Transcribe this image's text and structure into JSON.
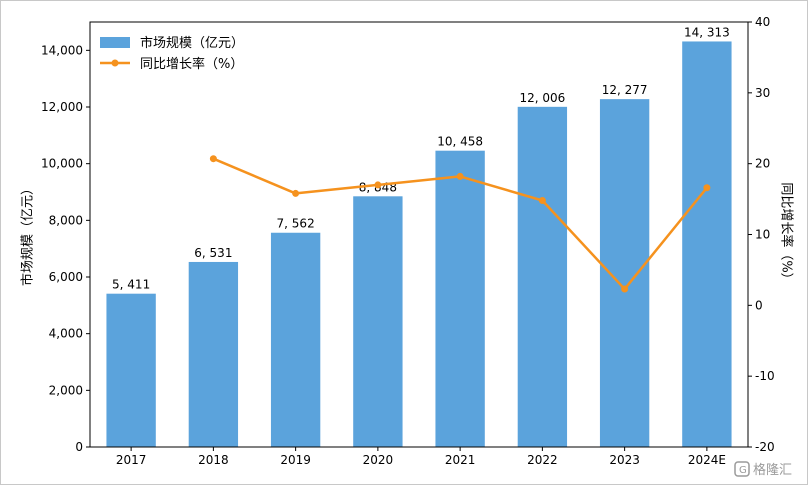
{
  "chart_data": {
    "type": "bar+line",
    "categories": [
      "2017",
      "2018",
      "2019",
      "2020",
      "2021",
      "2022",
      "2023",
      "2024E"
    ],
    "series": [
      {
        "name": "市场规模（亿元）",
        "type": "bar",
        "axis": "left",
        "values": [
          5411,
          6531,
          7562,
          8848,
          10458,
          12006,
          12277,
          14313
        ],
        "labels": [
          "5, 411",
          "6, 531",
          "7, 562",
          "8, 848",
          "10, 458",
          "12, 006",
          "12, 277",
          "14, 313"
        ]
      },
      {
        "name": "同比增长率（%）",
        "type": "line",
        "axis": "right",
        "values": [
          null,
          20.7,
          15.8,
          17.0,
          18.2,
          14.8,
          2.3,
          16.6
        ]
      }
    ],
    "ylabel": "市场规模（亿元）",
    "y2label": "同比增长率（%）",
    "ylim": [
      0,
      15000
    ],
    "y2lim": [
      -20,
      40
    ],
    "yticks": [
      0,
      2000,
      4000,
      6000,
      8000,
      10000,
      12000,
      14000
    ],
    "yticklabels": [
      "0",
      "2,000",
      "4,000",
      "6,000",
      "8,000",
      "10,000",
      "12,000",
      "14,000"
    ],
    "y2ticks": [
      -20,
      -10,
      0,
      10,
      20,
      30,
      40
    ],
    "y2ticklabels": [
      "-20",
      "-10",
      "0",
      "10",
      "20",
      "30",
      "40"
    ],
    "grid": false,
    "legend": "top-left",
    "colors": {
      "bar": "#5ba3dc",
      "line": "#f5921e"
    }
  },
  "watermark": {
    "text": "格隆汇",
    "icon": "gelonghui-logo-icon"
  }
}
